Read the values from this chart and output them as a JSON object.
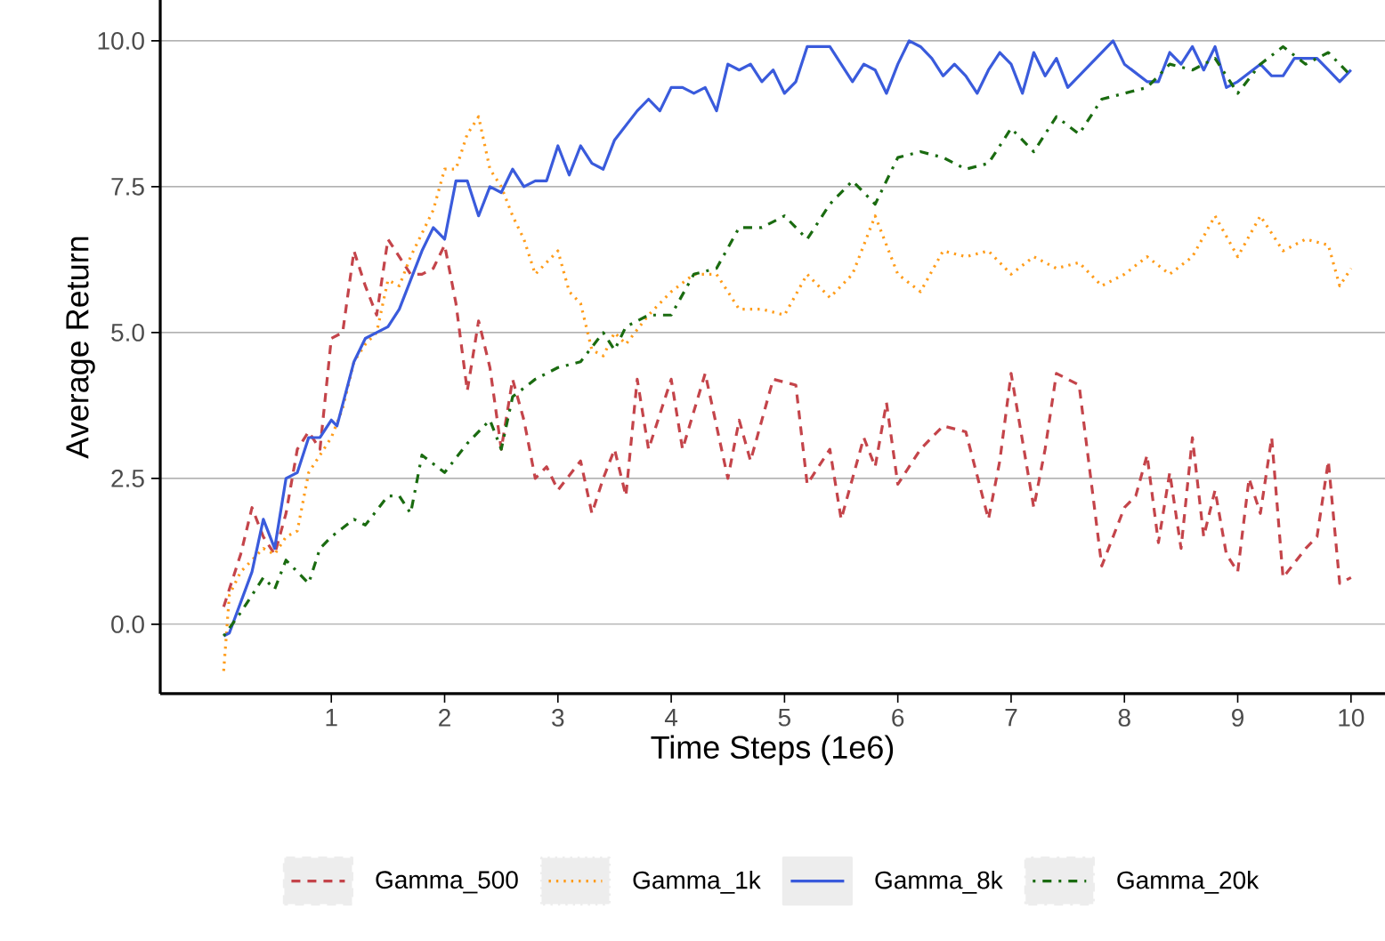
{
  "chart_data": {
    "type": "line",
    "xlabel": "Time Steps (1e6)",
    "ylabel": "Average Return",
    "xlim": [
      -0.51,
      10.3
    ],
    "ylim": [
      -1.19,
      10.7
    ],
    "xticks": [
      1,
      2,
      3,
      4,
      5,
      6,
      7,
      8,
      9,
      10
    ],
    "yticks": [
      {
        "value": 0,
        "label": "0.0"
      },
      {
        "value": 2.5,
        "label": "2.5"
      },
      {
        "value": 5,
        "label": "5.0"
      },
      {
        "value": 7.5,
        "label": "7.5"
      },
      {
        "value": 10,
        "label": "10.0"
      }
    ],
    "grid": "y",
    "legend": "bottom",
    "series": [
      {
        "name": "Gamma_500",
        "color": "#c4444a",
        "line_style": "dashed",
        "x": [
          0.05,
          0.2,
          0.3,
          0.4,
          0.5,
          0.6,
          0.7,
          0.8,
          0.9,
          1.0,
          1.1,
          1.2,
          1.3,
          1.4,
          1.5,
          1.6,
          1.7,
          1.8,
          1.9,
          2.0,
          2.1,
          2.2,
          2.3,
          2.4,
          2.5,
          2.6,
          2.7,
          2.8,
          2.9,
          3.0,
          3.2,
          3.3,
          3.4,
          3.5,
          3.6,
          3.7,
          3.8,
          4.0,
          4.1,
          4.3,
          4.5,
          4.6,
          4.7,
          4.9,
          5.1,
          5.2,
          5.4,
          5.5,
          5.7,
          5.8,
          5.9,
          6.0,
          6.2,
          6.4,
          6.6,
          6.8,
          6.9,
          7.0,
          7.2,
          7.3,
          7.4,
          7.6,
          7.8,
          8.0,
          8.1,
          8.2,
          8.3,
          8.4,
          8.5,
          8.6,
          8.7,
          8.8,
          8.9,
          9.0,
          9.1,
          9.2,
          9.3,
          9.4,
          9.6,
          9.7,
          9.8,
          9.9,
          10.0
        ],
        "values": [
          0.3,
          1.2,
          2.0,
          1.5,
          1.2,
          1.9,
          3.0,
          3.3,
          3.0,
          4.9,
          5.0,
          6.4,
          5.8,
          5.3,
          6.6,
          6.3,
          6.0,
          6.0,
          6.1,
          6.5,
          5.5,
          4.0,
          5.2,
          4.4,
          3.0,
          4.2,
          3.5,
          2.5,
          2.7,
          2.3,
          2.8,
          1.9,
          2.5,
          3.0,
          2.2,
          4.2,
          3.0,
          4.2,
          3.0,
          4.3,
          2.5,
          3.5,
          2.8,
          4.2,
          4.1,
          2.4,
          3.0,
          1.8,
          3.2,
          2.7,
          3.8,
          2.4,
          3.0,
          3.4,
          3.3,
          1.8,
          2.8,
          4.3,
          2.0,
          3.0,
          4.3,
          4.1,
          1.0,
          2.0,
          2.2,
          2.9,
          1.4,
          2.6,
          1.3,
          3.2,
          1.5,
          2.3,
          1.2,
          0.9,
          2.5,
          1.9,
          3.2,
          0.8,
          1.3,
          1.5,
          2.8,
          0.7,
          0.8
        ]
      },
      {
        "name": "Gamma_1k",
        "color": "#ff9c1a",
        "line_style": "dotted",
        "x": [
          0.05,
          0.1,
          0.2,
          0.3,
          0.4,
          0.5,
          0.6,
          0.7,
          0.8,
          0.9,
          1.0,
          1.1,
          1.2,
          1.3,
          1.4,
          1.5,
          1.6,
          1.7,
          1.8,
          1.9,
          2.0,
          2.1,
          2.2,
          2.3,
          2.4,
          2.5,
          2.6,
          2.7,
          2.8,
          3.0,
          3.1,
          3.2,
          3.3,
          3.4,
          3.5,
          3.6,
          3.8,
          4.0,
          4.2,
          4.4,
          4.6,
          4.8,
          5.0,
          5.2,
          5.4,
          5.6,
          5.8,
          6.0,
          6.2,
          6.4,
          6.6,
          6.8,
          7.0,
          7.2,
          7.4,
          7.6,
          7.8,
          8.0,
          8.2,
          8.4,
          8.6,
          8.8,
          9.0,
          9.2,
          9.4,
          9.6,
          9.8,
          9.9,
          10.0
        ],
        "values": [
          -0.8,
          0.5,
          0.9,
          1.1,
          1.3,
          1.2,
          1.5,
          1.6,
          2.6,
          2.9,
          3.2,
          3.7,
          4.5,
          4.8,
          5.0,
          5.9,
          5.8,
          6.3,
          6.7,
          7.1,
          7.8,
          7.8,
          8.4,
          8.7,
          7.8,
          7.5,
          7.0,
          6.6,
          6.0,
          6.4,
          5.7,
          5.5,
          4.7,
          4.6,
          5.0,
          4.8,
          5.3,
          5.7,
          6.0,
          6.0,
          5.4,
          5.4,
          5.3,
          6.0,
          5.6,
          6.0,
          7.0,
          6.0,
          5.7,
          6.4,
          6.3,
          6.4,
          6.0,
          6.3,
          6.1,
          6.2,
          5.8,
          6.0,
          6.3,
          6.0,
          6.3,
          7.0,
          6.3,
          7.0,
          6.4,
          6.6,
          6.5,
          5.8,
          6.1
        ]
      },
      {
        "name": "Gamma_8k",
        "color": "#3a5bdc",
        "line_style": "solid",
        "x": [
          0.05,
          0.1,
          0.3,
          0.4,
          0.5,
          0.6,
          0.7,
          0.8,
          0.9,
          1.0,
          1.05,
          1.2,
          1.3,
          1.4,
          1.5,
          1.6,
          1.7,
          1.8,
          1.9,
          2.0,
          2.1,
          2.2,
          2.3,
          2.4,
          2.5,
          2.6,
          2.7,
          2.8,
          2.9,
          3.0,
          3.1,
          3.2,
          3.3,
          3.4,
          3.5,
          3.7,
          3.8,
          3.9,
          4.0,
          4.1,
          4.2,
          4.3,
          4.4,
          4.5,
          4.6,
          4.7,
          4.8,
          4.9,
          5.0,
          5.1,
          5.2,
          5.3,
          5.4,
          5.5,
          5.6,
          5.7,
          5.8,
          5.9,
          6.0,
          6.1,
          6.2,
          6.3,
          6.4,
          6.5,
          6.6,
          6.7,
          6.8,
          6.9,
          7.0,
          7.1,
          7.2,
          7.3,
          7.4,
          7.5,
          7.7,
          7.9,
          8.0,
          8.2,
          8.3,
          8.4,
          8.5,
          8.6,
          8.7,
          8.8,
          8.9,
          9.0,
          9.2,
          9.3,
          9.4,
          9.5,
          9.7,
          9.8,
          9.9,
          10.0
        ],
        "values": [
          -0.2,
          -0.15,
          0.9,
          1.8,
          1.3,
          2.5,
          2.6,
          3.2,
          3.2,
          3.5,
          3.4,
          4.5,
          4.9,
          5.0,
          5.1,
          5.4,
          5.9,
          6.4,
          6.8,
          6.6,
          7.6,
          7.6,
          7.0,
          7.5,
          7.4,
          7.8,
          7.5,
          7.6,
          7.6,
          8.2,
          7.7,
          8.2,
          7.9,
          7.8,
          8.3,
          8.8,
          9.0,
          8.8,
          9.2,
          9.2,
          9.1,
          9.2,
          8.8,
          9.6,
          9.5,
          9.6,
          9.3,
          9.5,
          9.1,
          9.3,
          9.9,
          9.9,
          9.9,
          9.6,
          9.3,
          9.6,
          9.5,
          9.1,
          9.6,
          10.0,
          9.9,
          9.7,
          9.4,
          9.6,
          9.4,
          9.1,
          9.5,
          9.8,
          9.6,
          9.1,
          9.8,
          9.4,
          9.7,
          9.2,
          9.6,
          10.0,
          9.6,
          9.3,
          9.3,
          9.8,
          9.6,
          9.9,
          9.5,
          9.9,
          9.2,
          9.3,
          9.6,
          9.4,
          9.4,
          9.7,
          9.7,
          9.5,
          9.3,
          9.5
        ]
      },
      {
        "name": "Gamma_20k",
        "color": "#1a6b10",
        "line_style": "dashdot",
        "x": [
          0.05,
          0.2,
          0.4,
          0.5,
          0.6,
          0.8,
          0.9,
          1.0,
          1.2,
          1.3,
          1.5,
          1.6,
          1.7,
          1.8,
          2.0,
          2.2,
          2.4,
          2.5,
          2.6,
          2.8,
          3.0,
          3.2,
          3.4,
          3.5,
          3.6,
          3.8,
          4.0,
          4.2,
          4.4,
          4.6,
          4.8,
          5.0,
          5.2,
          5.4,
          5.6,
          5.8,
          6.0,
          6.2,
          6.4,
          6.6,
          6.8,
          7.0,
          7.2,
          7.4,
          7.6,
          7.8,
          8.0,
          8.2,
          8.4,
          8.6,
          8.8,
          9.0,
          9.2,
          9.4,
          9.6,
          9.8,
          10.0
        ],
        "values": [
          -0.2,
          0.2,
          0.8,
          0.6,
          1.1,
          0.7,
          1.3,
          1.5,
          1.8,
          1.7,
          2.2,
          2.2,
          1.9,
          2.9,
          2.6,
          3.1,
          3.5,
          3.0,
          3.9,
          4.2,
          4.4,
          4.5,
          5.0,
          4.7,
          5.1,
          5.3,
          5.3,
          6.0,
          6.1,
          6.8,
          6.8,
          7.0,
          6.6,
          7.2,
          7.6,
          7.2,
          8.0,
          8.1,
          8.0,
          7.8,
          7.9,
          8.5,
          8.1,
          8.7,
          8.4,
          9.0,
          9.1,
          9.2,
          9.6,
          9.5,
          9.7,
          9.1,
          9.6,
          9.9,
          9.6,
          9.8,
          9.4
        ]
      }
    ]
  }
}
